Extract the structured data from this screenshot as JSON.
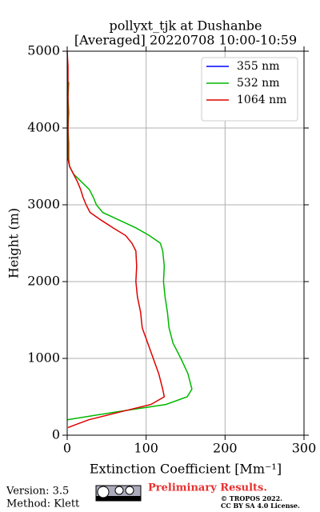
{
  "chart_data": {
    "type": "line",
    "title": "pollyxt_tjk at Dushanbe",
    "subtitle": "[Averaged] 20220708 10:00-10:59",
    "xlabel": "Extinction Coefficient [Mm⁻¹]",
    "ylabel": "Height (m)",
    "y": [
      100,
      200,
      300,
      400,
      500,
      600,
      800,
      1000,
      1200,
      1400,
      1600,
      1800,
      2000,
      2200,
      2400,
      2500,
      2600,
      2700,
      2800,
      2900,
      3000,
      3100,
      3200,
      3300,
      3400,
      3500,
      3600,
      3800,
      4000,
      4200,
      4400,
      4600,
      4800,
      5000
    ],
    "series": [
      {
        "name": "355 nm",
        "color": "#0000ff",
        "values": [
          null,
          null,
          null,
          null,
          null,
          null,
          null,
          null,
          null,
          null,
          null,
          null,
          null,
          null,
          null,
          null,
          null,
          null,
          null,
          null,
          null,
          null,
          null,
          null,
          null,
          null,
          null,
          null,
          null,
          null,
          null,
          null,
          null,
          null
        ]
      },
      {
        "name": "532 nm",
        "color": "#00b800",
        "values": [
          null,
          0,
          60,
          125,
          152,
          158,
          153,
          144,
          134,
          129,
          127,
          124,
          122,
          123,
          121,
          118,
          104,
          87,
          66,
          45,
          37,
          33,
          28,
          18,
          8,
          3,
          2,
          2,
          1,
          2,
          1,
          2,
          null,
          null
        ]
      },
      {
        "name": "1064 nm",
        "color": "#e00000",
        "values": [
          1,
          27,
          66,
          106,
          123,
          121,
          116,
          109,
          102,
          95,
          93,
          89,
          87,
          88,
          87,
          82,
          74,
          58,
          43,
          29,
          24,
          20,
          17,
          13,
          8,
          3,
          1,
          1,
          1,
          1,
          1,
          1,
          1,
          0
        ]
      }
    ],
    "xlim": [
      0,
      300
    ],
    "xticks": [
      0,
      100,
      200,
      300
    ],
    "ylim": [
      0,
      5000
    ],
    "yticks": [
      0,
      1000,
      2000,
      3000,
      4000,
      5000
    ],
    "grid": true,
    "legend": "upper right"
  },
  "footer": {
    "version": "Version: 3.5",
    "method": "Method: Klett",
    "notice": "Preliminary Results.",
    "copyright": "© TROPOS 2022.",
    "license": "CC BY SA 4.0 License."
  }
}
